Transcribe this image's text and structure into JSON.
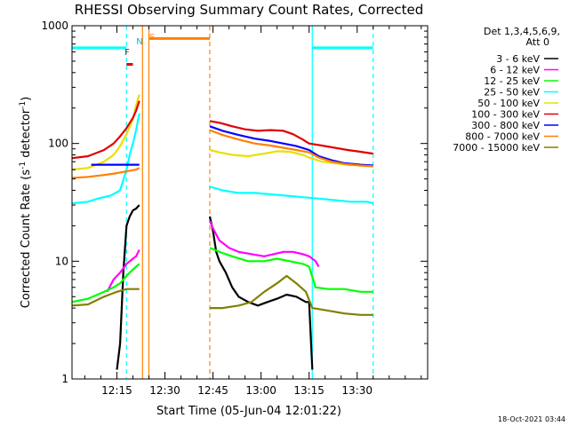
{
  "chart_data": {
    "type": "line",
    "title": "RHESSI Observing Summary Count Rates, Corrected",
    "xlabel": "Start Time (05-Jun-04 12:01:22)",
    "ylabel": "Corrected Count Rate (s",
    "ylabel_sup1": "-1",
    "ylabel_mid": " detector",
    "ylabel_sup2": "-1",
    "ylabel_end": ")",
    "yscale": "log",
    "ylim": [
      1,
      1000
    ],
    "yticks": [
      "1",
      "10",
      "100",
      "1000"
    ],
    "xlim_min": [
      0,
      111
    ],
    "xticks": [
      {
        "label": "12:15",
        "m": 14
      },
      {
        "label": "12:30",
        "m": 29
      },
      {
        "label": "12:45",
        "m": 44
      },
      {
        "label": "13:00",
        "m": 59
      },
      {
        "label": "13:15",
        "m": 74
      },
      {
        "label": "13:30",
        "m": 89
      }
    ],
    "legend_header": [
      "Det 1,3,4,5,6,9,",
      "Att 0"
    ],
    "legend_position": "right",
    "footer": "18-Oct-2021 03:44",
    "flags": [
      {
        "label": "N",
        "color": "#00b0f0"
      },
      {
        "label": "S",
        "color": "#ff8000"
      },
      {
        "label": "F",
        "color": "#e00000"
      }
    ],
    "series": [
      {
        "name": "3 - 6 keV",
        "color": "#000000",
        "segments": [
          [
            [
              14,
              1.2
            ],
            [
              15,
              2.0
            ],
            [
              16,
              8.0
            ],
            [
              17,
              20
            ],
            [
              18,
              24
            ],
            [
              19,
              27
            ],
            [
              20,
              28
            ],
            [
              21,
              30
            ]
          ],
          [
            [
              43,
              24
            ],
            [
              44,
              18
            ],
            [
              45,
              12
            ],
            [
              46,
              10
            ],
            [
              48,
              8
            ],
            [
              50,
              6
            ],
            [
              52,
              5
            ],
            [
              55,
              4.5
            ],
            [
              58,
              4.2
            ],
            [
              61,
              4.5
            ],
            [
              64,
              4.8
            ],
            [
              67,
              5.2
            ],
            [
              70,
              5.0
            ],
            [
              73,
              4.5
            ],
            [
              74,
              4.5
            ],
            [
              75,
              1.2
            ]
          ]
        ]
      },
      {
        "name": "6 - 12 keV",
        "color": "#ff00ff",
        "segments": [
          [
            [
              11,
              5.5
            ],
            [
              13,
              7
            ],
            [
              15,
              8
            ],
            [
              17,
              9.5
            ],
            [
              19,
              10.5
            ],
            [
              20,
              11
            ],
            [
              21,
              12.5
            ]
          ],
          [
            [
              43,
              22
            ],
            [
              44,
              19
            ],
            [
              46,
              15
            ],
            [
              49,
              13
            ],
            [
              52,
              12
            ],
            [
              56,
              11.5
            ],
            [
              60,
              11
            ],
            [
              63,
              11.5
            ],
            [
              66,
              12
            ],
            [
              69,
              12
            ],
            [
              72,
              11.5
            ],
            [
              74,
              11
            ],
            [
              76,
              10
            ],
            [
              77,
              9
            ]
          ]
        ]
      },
      {
        "name": "12 - 25 keV",
        "color": "#00ff00",
        "segments": [
          [
            [
              0,
              4.5
            ],
            [
              5,
              4.8
            ],
            [
              10,
              5.5
            ],
            [
              13,
              6
            ],
            [
              15,
              6.5
            ],
            [
              17,
              7.5
            ],
            [
              19,
              8.5
            ],
            [
              20,
              9
            ],
            [
              21,
              9.5
            ]
          ],
          [
            [
              43,
              13
            ],
            [
              46,
              12
            ],
            [
              50,
              11
            ],
            [
              55,
              10
            ],
            [
              60,
              10
            ],
            [
              64,
              10.5
            ],
            [
              68,
              10
            ],
            [
              72,
              9.5
            ],
            [
              74,
              9
            ],
            [
              76,
              6
            ],
            [
              80,
              5.8
            ],
            [
              85,
              5.8
            ],
            [
              90,
              5.5
            ],
            [
              94,
              5.5
            ]
          ]
        ]
      },
      {
        "name": "25 - 50 keV",
        "color": "#00ffff",
        "segments": [
          [
            [
              0,
              31
            ],
            [
              5,
              32
            ],
            [
              8,
              34
            ],
            [
              12,
              36
            ],
            [
              15,
              40
            ],
            [
              17,
              60
            ],
            [
              18,
              80
            ],
            [
              19,
              100
            ],
            [
              20,
              130
            ],
            [
              21,
              180
            ]
          ],
          [
            [
              43,
              43
            ],
            [
              47,
              40
            ],
            [
              52,
              38
            ],
            [
              57,
              38
            ],
            [
              62,
              37
            ],
            [
              67,
              36
            ],
            [
              72,
              35
            ],
            [
              77,
              34
            ],
            [
              82,
              33
            ],
            [
              87,
              32
            ],
            [
              92,
              32
            ],
            [
              94,
              31
            ]
          ]
        ]
      },
      {
        "name": "50 - 100 keV",
        "color": "#e8e000",
        "segments": [
          [
            [
              0,
              60
            ],
            [
              5,
              62
            ],
            [
              10,
              70
            ],
            [
              13,
              80
            ],
            [
              15,
              95
            ],
            [
              17,
              120
            ],
            [
              19,
              160
            ],
            [
              20,
              210
            ],
            [
              21,
              260
            ]
          ],
          [
            [
              43,
              88
            ],
            [
              46,
              84
            ],
            [
              50,
              80
            ],
            [
              55,
              78
            ],
            [
              60,
              82
            ],
            [
              64,
              86
            ],
            [
              68,
              85
            ],
            [
              72,
              80
            ],
            [
              74,
              76
            ],
            [
              78,
              70
            ],
            [
              82,
              68
            ],
            [
              86,
              66
            ],
            [
              90,
              65
            ],
            [
              94,
              64
            ]
          ]
        ]
      },
      {
        "name": "100 - 300 keV",
        "color": "#e00000",
        "segments": [
          [
            [
              0,
              75
            ],
            [
              5,
              78
            ],
            [
              10,
              88
            ],
            [
              13,
              100
            ],
            [
              15,
              115
            ],
            [
              17,
              135
            ],
            [
              19,
              165
            ],
            [
              20,
              190
            ],
            [
              21,
              230
            ]
          ],
          [
            [
              43,
              155
            ],
            [
              46,
              150
            ],
            [
              50,
              140
            ],
            [
              54,
              132
            ],
            [
              58,
              128
            ],
            [
              62,
              130
            ],
            [
              66,
              128
            ],
            [
              69,
              120
            ],
            [
              72,
              108
            ],
            [
              74,
              100
            ],
            [
              78,
              96
            ],
            [
              82,
              92
            ],
            [
              86,
              88
            ],
            [
              90,
              85
            ],
            [
              94,
              82
            ]
          ]
        ]
      },
      {
        "name": "300 - 800 keV",
        "color": "#0000ff",
        "segments": [
          [
            [
              6,
              66
            ],
            [
              14,
              66
            ],
            [
              21,
              66
            ]
          ],
          [
            [
              43,
              140
            ],
            [
              47,
              128
            ],
            [
              52,
              118
            ],
            [
              57,
              110
            ],
            [
              62,
              105
            ],
            [
              66,
              100
            ],
            [
              70,
              95
            ],
            [
              74,
              88
            ],
            [
              77,
              78
            ],
            [
              81,
              72
            ],
            [
              85,
              68
            ],
            [
              90,
              66
            ],
            [
              94,
              65
            ]
          ]
        ]
      },
      {
        "name": "800 - 7000 keV",
        "color": "#ff8000",
        "segments": [
          [
            [
              0,
              51
            ],
            [
              5,
              52
            ],
            [
              10,
              54
            ],
            [
              14,
              56
            ],
            [
              17,
              58
            ],
            [
              20,
              60
            ],
            [
              21,
              62
            ]
          ],
          [
            [
              43,
              130
            ],
            [
              47,
              118
            ],
            [
              52,
              108
            ],
            [
              57,
              100
            ],
            [
              62,
              96
            ],
            [
              66,
              92
            ],
            [
              70,
              88
            ],
            [
              74,
              84
            ],
            [
              77,
              76
            ],
            [
              81,
              70
            ],
            [
              85,
              67
            ],
            [
              90,
              65
            ],
            [
              94,
              64
            ]
          ]
        ]
      },
      {
        "name": "7000 - 15000 keV",
        "color": "#808000",
        "segments": [
          [
            [
              0,
              4.2
            ],
            [
              5,
              4.3
            ],
            [
              10,
              5.0
            ],
            [
              14,
              5.5
            ],
            [
              17,
              5.8
            ],
            [
              21,
              5.8
            ]
          ],
          [
            [
              43,
              4.0
            ],
            [
              47,
              4.0
            ],
            [
              52,
              4.2
            ],
            [
              56,
              4.5
            ],
            [
              60,
              5.5
            ],
            [
              64,
              6.5
            ],
            [
              67,
              7.5
            ],
            [
              70,
              6.5
            ],
            [
              73,
              5.5
            ],
            [
              75,
              4.0
            ],
            [
              80,
              3.8
            ],
            [
              85,
              3.6
            ],
            [
              90,
              3.5
            ],
            [
              94,
              3.5
            ]
          ]
        ]
      }
    ],
    "state_bars": [
      {
        "color": "#00ffff",
        "from": 0,
        "to": 17,
        "value": 650
      },
      {
        "color": "#ff8000",
        "from": 24,
        "to": 43,
        "value": 780
      },
      {
        "color": "#00ffff",
        "from": 75,
        "to": 94,
        "value": 650
      },
      {
        "color": "#e00000",
        "from": 17,
        "to": 19,
        "value": 470
      }
    ],
    "markers": [
      {
        "color": "#00ffff",
        "style": "dashed",
        "m": 17
      },
      {
        "color": "#00ffff",
        "style": "solid",
        "m": 75
      },
      {
        "color": "#00ffff",
        "style": "dashed",
        "m": 94
      },
      {
        "color": "#ff8000",
        "style": "solid",
        "m": 22
      },
      {
        "color": "#ff8000",
        "style": "solid",
        "m": 24
      },
      {
        "color": "#ff8000",
        "style": "dashed",
        "m": 43
      }
    ]
  }
}
